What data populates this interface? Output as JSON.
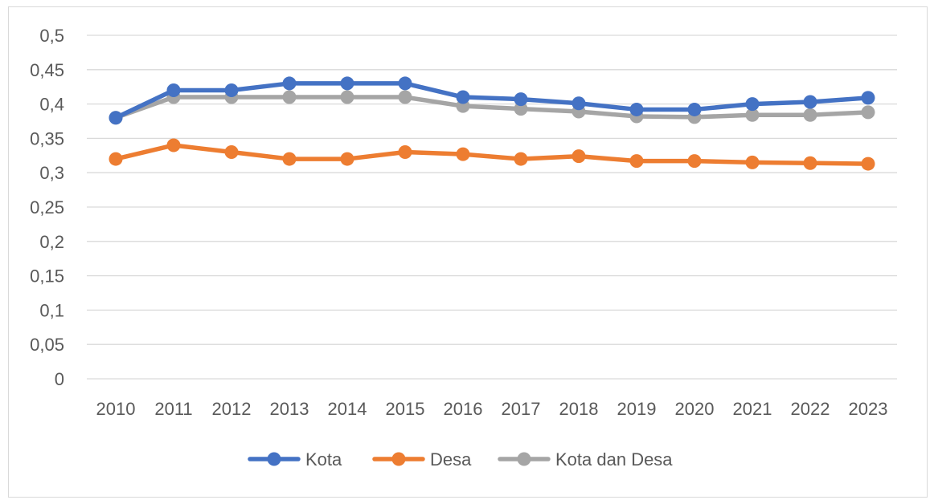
{
  "chart_data": {
    "type": "line",
    "title": "",
    "xlabel": "",
    "ylabel": "",
    "categories": [
      "2010",
      "2011",
      "2012",
      "2013",
      "2014",
      "2015",
      "2016",
      "2017",
      "2018",
      "2019",
      "2020",
      "2021",
      "2022",
      "2023"
    ],
    "ylim": [
      0,
      0.5
    ],
    "yticks": [
      "0",
      "0,05",
      "0,1",
      "0,15",
      "0,2",
      "0,25",
      "0,3",
      "0,35",
      "0,4",
      "0,45",
      "0,5"
    ],
    "grid": true,
    "legend_position": "bottom",
    "series": [
      {
        "name": "Kota",
        "color": "#4472c4",
        "values": [
          0.38,
          0.42,
          0.42,
          0.43,
          0.43,
          0.43,
          0.41,
          0.407,
          0.401,
          0.392,
          0.392,
          0.4,
          0.403,
          0.409
        ]
      },
      {
        "name": "Desa",
        "color": "#ed7d31",
        "values": [
          0.32,
          0.34,
          0.33,
          0.32,
          0.32,
          0.33,
          0.327,
          0.32,
          0.324,
          0.317,
          0.317,
          0.315,
          0.314,
          0.313
        ]
      },
      {
        "name": "Kota dan Desa",
        "color": "#a5a5a5",
        "values": [
          0.38,
          0.41,
          0.41,
          0.41,
          0.41,
          0.41,
          0.397,
          0.393,
          0.389,
          0.382,
          0.381,
          0.384,
          0.384,
          0.388
        ]
      }
    ]
  }
}
